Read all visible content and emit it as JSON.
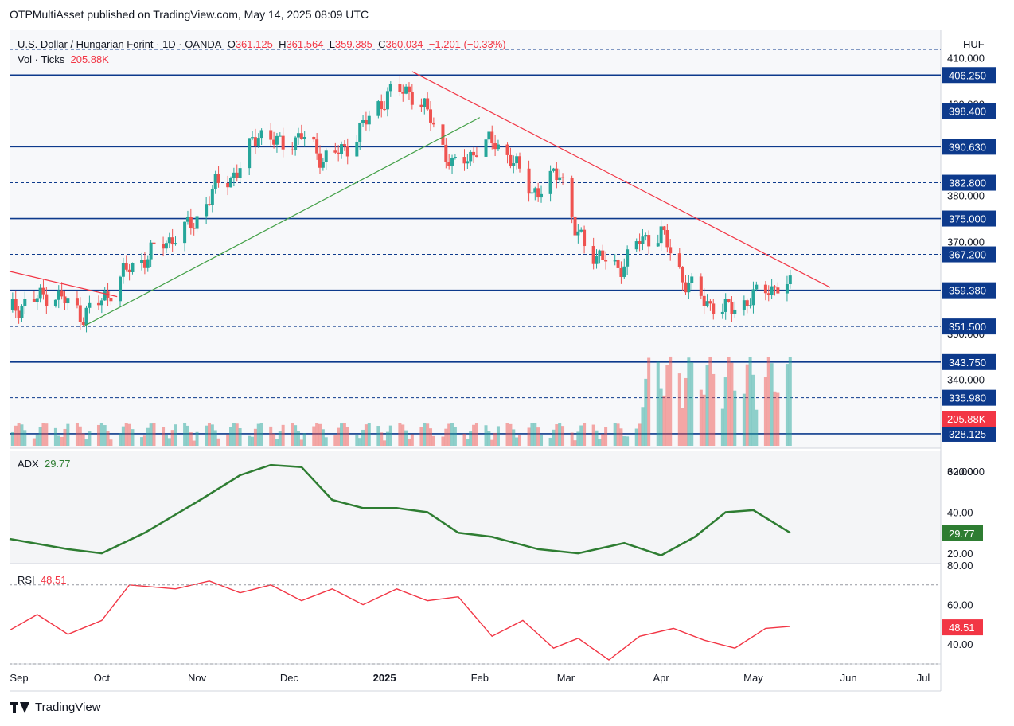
{
  "header": {
    "publisher_line": "OTPMultiAsset published on TradingView.com, May 14, 2025 08:09 UTC"
  },
  "legend": {
    "symbol": "U.S. Dollar / Hungarian Forint · 1D · OANDA",
    "o_label": "O",
    "o_value": "361.125",
    "h_label": "H",
    "h_value": "361.564",
    "l_label": "L",
    "l_value": "359.385",
    "c_label": "C",
    "c_value": "360.034",
    "change": "−1.201 (−0.33%)",
    "vol_label": "Vol · Ticks",
    "vol_value": "205.88K"
  },
  "price_axis": {
    "currency": "HUF",
    "ticks": [
      "410.000",
      "400.000",
      "380.000",
      "370.000",
      "350.000",
      "340.000",
      "320.000"
    ],
    "level_labels": [
      "406.250",
      "398.400",
      "390.630",
      "382.800",
      "375.000",
      "367.200",
      "359.380",
      "351.500",
      "343.750",
      "335.980",
      "328.125"
    ],
    "last_volume_label": "205.88K"
  },
  "adx": {
    "label": "ADX",
    "value": "29.77",
    "ticks": [
      "60.00",
      "40.00",
      "20.00"
    ]
  },
  "rsi": {
    "label": "RSI",
    "value": "48.51",
    "ticks": [
      "80.00",
      "60.00",
      "40.00"
    ]
  },
  "time_axis": {
    "labels": [
      "Sep",
      "Oct",
      "Nov",
      "Dec",
      "2025",
      "Feb",
      "Mar",
      "Apr",
      "May",
      "Jun",
      "Jul"
    ]
  },
  "footer": {
    "brand": "TradingView"
  },
  "colors": {
    "up": "#26a69a",
    "down": "#ef5350",
    "level_line": "#0d3a8c",
    "trend_down": "#f23645",
    "trend_up": "#43a047",
    "adx_line": "#2e7d32",
    "rsi_line": "#f23645"
  },
  "chart_data": [
    {
      "type": "candlestick",
      "title": "U.S. Dollar / Hungarian Forint · 1D · OANDA",
      "x_range": [
        "2024-09-01",
        "2025-07-01"
      ],
      "ylim": [
        325,
        416
      ],
      "horizontal_levels": [
        {
          "value": 406.25,
          "style": "solid"
        },
        {
          "value": 398.4,
          "style": "dashed"
        },
        {
          "value": 390.63,
          "style": "solid"
        },
        {
          "value": 382.8,
          "style": "dashed"
        },
        {
          "value": 375.0,
          "style": "solid"
        },
        {
          "value": 367.2,
          "style": "dashed"
        },
        {
          "value": 359.38,
          "style": "solid"
        },
        {
          "value": 351.5,
          "style": "dashed"
        },
        {
          "value": 343.75,
          "style": "solid"
        },
        {
          "value": 335.98,
          "style": "dashed"
        },
        {
          "value": 328.125,
          "style": "solid"
        }
      ],
      "trendlines": [
        {
          "from": [
            "2024-09-01",
            363.5
          ],
          "to": [
            "2024-10-06",
            358.0
          ],
          "color": "red"
        },
        {
          "from": [
            "2024-09-25",
            351.5
          ],
          "to": [
            "2025-02-01",
            397.0
          ],
          "color": "green"
        },
        {
          "from": [
            "2025-01-10",
            407.0
          ],
          "to": [
            "2025-05-26",
            360.0
          ],
          "color": "red"
        }
      ],
      "series": [
        {
          "name": "Close",
          "x": [
            "2024-09-01",
            "2024-09-15",
            "2024-09-25",
            "2024-10-01",
            "2024-10-08",
            "2024-10-20",
            "2024-10-31",
            "2024-11-07",
            "2024-11-14",
            "2024-11-21",
            "2024-11-28",
            "2024-12-05",
            "2024-12-12",
            "2024-12-19",
            "2024-12-26",
            "2025-01-02",
            "2025-01-09",
            "2025-01-16",
            "2025-01-23",
            "2025-01-31",
            "2025-02-06",
            "2025-02-13",
            "2025-02-20",
            "2025-02-27",
            "2025-03-04",
            "2025-03-11",
            "2025-03-18",
            "2025-03-25",
            "2025-04-01",
            "2025-04-08",
            "2025-04-15",
            "2025-04-22",
            "2025-04-29",
            "2025-05-06",
            "2025-05-13"
          ],
          "values": [
            355,
            359,
            354,
            357,
            363,
            369,
            374,
            382,
            385,
            394,
            391,
            393,
            388,
            390,
            396,
            402,
            403,
            397,
            386,
            390,
            392,
            386,
            380,
            386,
            372,
            367,
            364,
            370,
            372,
            362,
            357,
            355,
            357,
            360,
            360
          ]
        }
      ]
    },
    {
      "type": "bar",
      "title": "Vol · Ticks",
      "last_value": "205.88K"
    },
    {
      "type": "line",
      "title": "ADX",
      "ylim": [
        15,
        70
      ],
      "x": [
        "2024-09-01",
        "2024-09-20",
        "2024-10-01",
        "2024-10-15",
        "2024-11-01",
        "2024-11-15",
        "2024-11-25",
        "2024-12-05",
        "2024-12-15",
        "2024-12-25",
        "2025-01-05",
        "2025-01-15",
        "2025-01-25",
        "2025-02-05",
        "2025-02-20",
        "2025-03-05",
        "2025-03-20",
        "2025-04-01",
        "2025-04-12",
        "2025-04-22",
        "2025-05-01",
        "2025-05-13"
      ],
      "series": [
        {
          "name": "ADX",
          "values": [
            27,
            22,
            20,
            30,
            45,
            58,
            63,
            62,
            46,
            42,
            42,
            40,
            30,
            28,
            22,
            20,
            25,
            19,
            28,
            40,
            41,
            30
          ]
        }
      ]
    },
    {
      "type": "line",
      "title": "RSI",
      "ylim": [
        30,
        80
      ],
      "x": [
        "2024-09-01",
        "2024-09-10",
        "2024-09-20",
        "2024-10-01",
        "2024-10-10",
        "2024-10-25",
        "2024-11-05",
        "2024-11-15",
        "2024-11-25",
        "2024-12-05",
        "2024-12-15",
        "2024-12-25",
        "2025-01-05",
        "2025-01-15",
        "2025-01-25",
        "2025-02-05",
        "2025-02-15",
        "2025-02-25",
        "2025-03-05",
        "2025-03-15",
        "2025-03-25",
        "2025-04-05",
        "2025-04-15",
        "2025-04-25",
        "2025-05-05",
        "2025-05-13"
      ],
      "series": [
        {
          "name": "RSI",
          "values": [
            47,
            55,
            45,
            52,
            70,
            68,
            72,
            66,
            70,
            62,
            68,
            60,
            68,
            62,
            64,
            44,
            52,
            38,
            43,
            32,
            44,
            48,
            42,
            38,
            48,
            49
          ]
        }
      ]
    }
  ]
}
